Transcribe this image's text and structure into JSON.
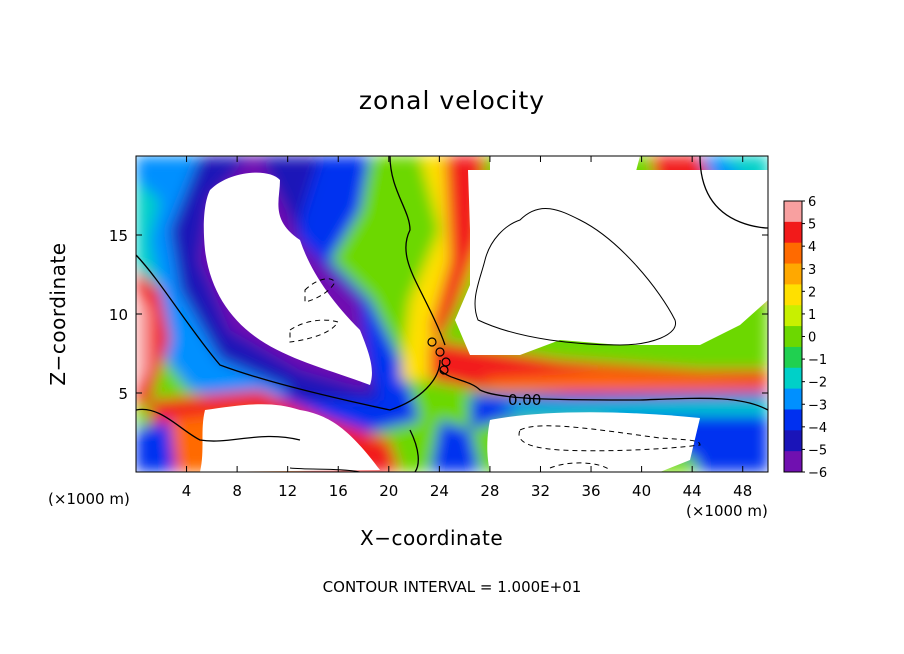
{
  "chart_data": {
    "type": "heatmap",
    "title": "zonal velocity",
    "xlabel": "X−coordinate",
    "ylabel": "Z−coordinate",
    "x_units": "(×1000 m)",
    "y_units": "(×1000 m)",
    "xlim": [
      0,
      50
    ],
    "ylim": [
      0,
      20
    ],
    "x_ticks": [
      4,
      8,
      12,
      16,
      20,
      24,
      28,
      32,
      36,
      40,
      44,
      48
    ],
    "y_ticks": [
      5,
      10,
      15
    ],
    "colorbar": {
      "range": [
        -6,
        6
      ],
      "labels": [
        "6",
        "5",
        "4",
        "3",
        "2",
        "1",
        "0",
        "−1",
        "−2",
        "−3",
        "−4",
        "−5",
        "−6"
      ],
      "colors": [
        "#f8a0a0",
        "#f21a1a",
        "#ff6a00",
        "#ffa800",
        "#ffe000",
        "#c8f000",
        "#6cd800",
        "#20d050",
        "#00d0c8",
        "#0090ff",
        "#0030f0",
        "#1a14b8",
        "#7010b0"
      ]
    },
    "contour_label": "0.00",
    "footer": "CONTOUR INTERVAL = 1.000E+01"
  }
}
